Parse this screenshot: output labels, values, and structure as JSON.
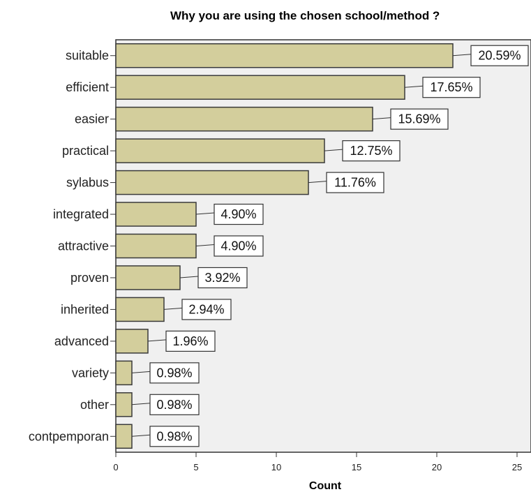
{
  "chart_data": {
    "type": "bar",
    "orientation": "horizontal",
    "title": "Why you are using the chosen school/method ?",
    "xlabel": "Count",
    "ylabel": "",
    "categories": [
      "suitable",
      "efficient",
      "easier",
      "practical",
      "sylabus",
      "integrated",
      "attractive",
      "proven",
      "inherited",
      "advanced",
      "variety",
      "other",
      "contpemporan"
    ],
    "values": [
      21,
      18,
      16,
      13,
      12,
      5,
      5,
      4,
      3,
      2,
      1,
      1,
      1
    ],
    "data_labels": [
      "20.59%",
      "17.65%",
      "15.69%",
      "12.75%",
      "11.76%",
      "4.90%",
      "4.90%",
      "3.92%",
      "2.94%",
      "1.96%",
      "0.98%",
      "0.98%",
      "0.98%"
    ],
    "xlim": [
      0,
      26
    ],
    "x_ticks": [
      0,
      5,
      10,
      15,
      20,
      25
    ],
    "grid": false,
    "legend": "none",
    "colors": {
      "bar_fill": "#d3ce9c",
      "bar_stroke": "#3a3a3a",
      "plot_background": "#f0f0f0",
      "page_background": "#ffffff",
      "label_box_fill": "#ffffff",
      "label_box_stroke": "#333333"
    }
  }
}
